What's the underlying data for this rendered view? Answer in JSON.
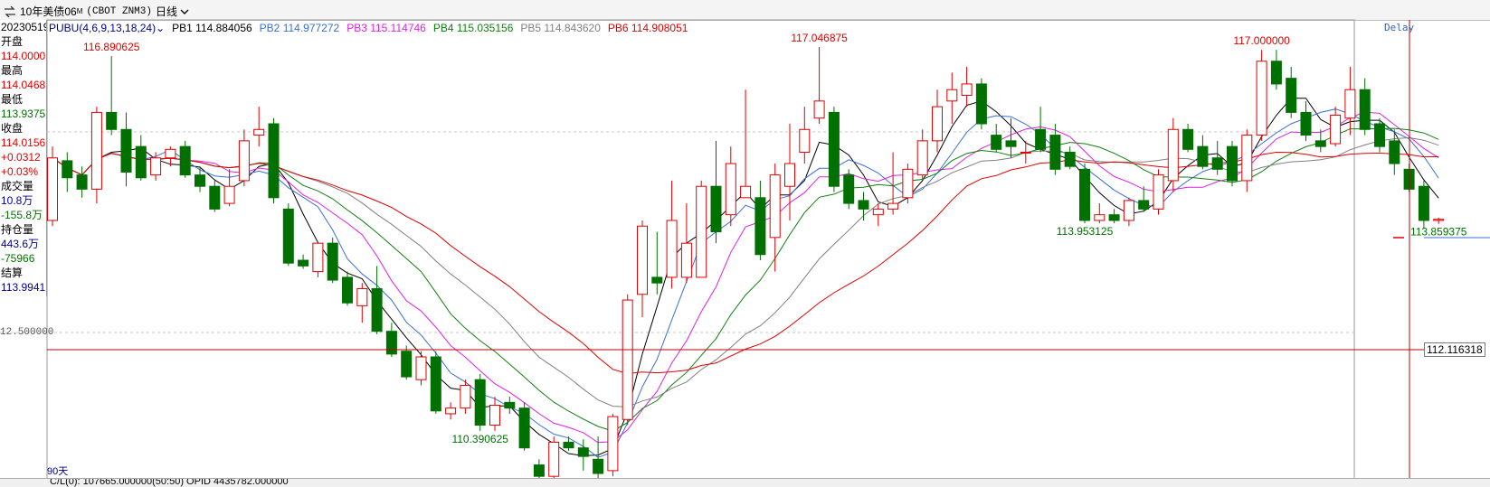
{
  "header": {
    "symbol_name": "10年美债06",
    "symbol_sup": "M",
    "symbol_code": "(CBOT ZNM3)",
    "period": "日线"
  },
  "info_panel": [
    {
      "text": "20230519",
      "cls": "lblk"
    },
    {
      "text": "开盘",
      "cls": "lblk"
    },
    {
      "text": "114.0000",
      "cls": "lred"
    },
    {
      "text": "最高",
      "cls": "lblk"
    },
    {
      "text": "114.0468",
      "cls": "lred"
    },
    {
      "text": "最低",
      "cls": "lblk"
    },
    {
      "text": "113.9375",
      "cls": "lgreen"
    },
    {
      "text": "收盘",
      "cls": "lblk"
    },
    {
      "text": "114.0156",
      "cls": "lred"
    },
    {
      "text": "+0.0312",
      "cls": "lred"
    },
    {
      "text": "+0.03%",
      "cls": "lred"
    },
    {
      "text": "成交量",
      "cls": "lblk"
    },
    {
      "text": "10.8万",
      "cls": "lblue"
    },
    {
      "text": "-155.8万",
      "cls": "lgreen"
    },
    {
      "text": "持仓量",
      "cls": "lblk"
    },
    {
      "text": "443.6万",
      "cls": "lblue"
    },
    {
      "text": "-75966",
      "cls": "lgreen"
    },
    {
      "text": "结算",
      "cls": "lblk"
    },
    {
      "text": "113.9941",
      "cls": "lblue"
    }
  ],
  "indicator": {
    "name": "PUBU(4,6,9,13,18,24)",
    "values": [
      {
        "label": "PB1 114.884056",
        "color": "#000000"
      },
      {
        "label": "PB2 114.977272",
        "color": "#3a6fd8"
      },
      {
        "label": "PB3 115.114746",
        "color": "#e020e0"
      },
      {
        "label": "PB4 115.035156",
        "color": "#108010"
      },
      {
        "label": "PB5 114.843620",
        "color": "#808080"
      },
      {
        "label": "PB6 114.908051",
        "color": "#e00000"
      }
    ]
  },
  "delay_label": "Delay",
  "price_axis_left_label": "12.500000",
  "crosshair_label": "112.116318",
  "days_label": "90天",
  "bottom_text": "C/L(0): 107665.000000(50:50)  OPID 4435782.000000",
  "colors": {
    "up": "#e00000",
    "down": "#007000",
    "ma6": "#e00000",
    "ma5": "#808080",
    "ma4": "#108010",
    "ma3": "#e020e0",
    "ma2": "#3a6fd8",
    "ma1": "#000000"
  },
  "chart_data": {
    "type": "candlestick",
    "title": "10年美债06 (CBOT ZNM3) 日线",
    "ylim": [
      109.9,
      117.4
    ],
    "annotations": [
      {
        "value": "116.890625",
        "color": "#e00000"
      },
      {
        "value": "117.046875",
        "color": "#e00000"
      },
      {
        "value": "117.000000",
        "color": "#e00000"
      },
      {
        "value": "110.390625",
        "color": "#007000"
      },
      {
        "value": "113.953125",
        "color": "#007000"
      },
      {
        "value": "113.859375",
        "color": "#007000"
      }
    ],
    "candles": [
      {
        "o": 114.0,
        "h": 115.3,
        "l": 113.9,
        "c": 115.1
      },
      {
        "o": 115.05,
        "h": 115.2,
        "l": 114.5,
        "c": 114.75
      },
      {
        "o": 114.8,
        "h": 114.95,
        "l": 114.4,
        "c": 114.55
      },
      {
        "o": 114.55,
        "h": 116.0,
        "l": 114.3,
        "c": 115.9
      },
      {
        "o": 115.9,
        "h": 116.89,
        "l": 115.5,
        "c": 115.6
      },
      {
        "o": 115.6,
        "h": 115.9,
        "l": 114.6,
        "c": 114.85
      },
      {
        "o": 115.3,
        "h": 115.5,
        "l": 114.7,
        "c": 114.75
      },
      {
        "o": 114.8,
        "h": 115.2,
        "l": 114.7,
        "c": 115.1
      },
      {
        "o": 115.1,
        "h": 115.3,
        "l": 114.95,
        "c": 115.25
      },
      {
        "o": 115.3,
        "h": 115.4,
        "l": 114.75,
        "c": 114.8
      },
      {
        "o": 114.8,
        "h": 114.95,
        "l": 114.5,
        "c": 114.6
      },
      {
        "o": 114.6,
        "h": 114.7,
        "l": 114.15,
        "c": 114.2
      },
      {
        "o": 114.3,
        "h": 114.9,
        "l": 114.25,
        "c": 114.6
      },
      {
        "o": 114.7,
        "h": 115.6,
        "l": 114.6,
        "c": 115.4
      },
      {
        "o": 115.5,
        "h": 116.0,
        "l": 115.3,
        "c": 115.6
      },
      {
        "o": 115.7,
        "h": 115.8,
        "l": 114.3,
        "c": 114.4
      },
      {
        "o": 114.2,
        "h": 114.3,
        "l": 113.2,
        "c": 113.25
      },
      {
        "o": 113.3,
        "h": 113.4,
        "l": 113.15,
        "c": 113.2
      },
      {
        "o": 113.1,
        "h": 113.6,
        "l": 113.0,
        "c": 113.6
      },
      {
        "o": 113.6,
        "h": 113.7,
        "l": 112.9,
        "c": 112.95
      },
      {
        "o": 113.0,
        "h": 113.1,
        "l": 112.5,
        "c": 112.55
      },
      {
        "o": 112.5,
        "h": 112.9,
        "l": 112.2,
        "c": 112.8
      },
      {
        "o": 112.8,
        "h": 113.2,
        "l": 112.0,
        "c": 112.05
      },
      {
        "o": 112.05,
        "h": 112.2,
        "l": 111.6,
        "c": 111.65
      },
      {
        "o": 111.7,
        "h": 111.8,
        "l": 111.2,
        "c": 111.25
      },
      {
        "o": 111.2,
        "h": 111.7,
        "l": 111.1,
        "c": 111.6
      },
      {
        "o": 111.6,
        "h": 111.7,
        "l": 110.6,
        "c": 110.65
      },
      {
        "o": 110.6,
        "h": 110.8,
        "l": 110.5,
        "c": 110.7
      },
      {
        "o": 110.7,
        "h": 111.2,
        "l": 110.6,
        "c": 111.1
      },
      {
        "o": 111.2,
        "h": 111.3,
        "l": 110.3,
        "c": 110.4
      },
      {
        "o": 110.4,
        "h": 110.9,
        "l": 110.3,
        "c": 110.75
      },
      {
        "o": 110.8,
        "h": 110.9,
        "l": 110.6,
        "c": 110.7
      },
      {
        "o": 110.7,
        "h": 110.8,
        "l": 109.95,
        "c": 110.0
      },
      {
        "o": 109.7,
        "h": 109.8,
        "l": 109.45,
        "c": 109.5
      },
      {
        "o": 109.5,
        "h": 110.2,
        "l": 109.4,
        "c": 110.1
      },
      {
        "o": 110.1,
        "h": 110.2,
        "l": 109.95,
        "c": 110.0
      },
      {
        "o": 110.0,
        "h": 110.15,
        "l": 109.6,
        "c": 109.85
      },
      {
        "o": 109.8,
        "h": 110.2,
        "l": 109.45,
        "c": 109.55
      },
      {
        "o": 109.6,
        "h": 110.6,
        "l": 109.5,
        "c": 110.55
      },
      {
        "o": 110.5,
        "h": 112.7,
        "l": 110.4,
        "c": 112.6
      },
      {
        "o": 112.7,
        "h": 114.0,
        "l": 112.3,
        "c": 113.9
      },
      {
        "o": 113.0,
        "h": 113.8,
        "l": 112.7,
        "c": 112.9
      },
      {
        "o": 113.0,
        "h": 114.7,
        "l": 112.8,
        "c": 114.0
      },
      {
        "o": 113.0,
        "h": 114.3,
        "l": 112.9,
        "c": 113.6
      },
      {
        "o": 113.0,
        "h": 114.7,
        "l": 113.0,
        "c": 114.6
      },
      {
        "o": 114.6,
        "h": 115.4,
        "l": 113.6,
        "c": 113.8
      },
      {
        "o": 114.1,
        "h": 115.3,
        "l": 113.9,
        "c": 115.0
      },
      {
        "o": 114.4,
        "h": 116.3,
        "l": 114.4,
        "c": 114.6
      },
      {
        "o": 114.4,
        "h": 114.7,
        "l": 113.3,
        "c": 113.4
      },
      {
        "o": 113.7,
        "h": 115.0,
        "l": 113.1,
        "c": 114.8
      },
      {
        "o": 114.6,
        "h": 115.7,
        "l": 114.0,
        "c": 115.0
      },
      {
        "o": 115.2,
        "h": 116.0,
        "l": 115.0,
        "c": 115.6
      },
      {
        "o": 115.8,
        "h": 117.05,
        "l": 115.7,
        "c": 116.1
      },
      {
        "o": 115.9,
        "h": 116.0,
        "l": 114.5,
        "c": 114.6
      },
      {
        "o": 114.8,
        "h": 114.9,
        "l": 114.2,
        "c": 114.3
      },
      {
        "o": 114.35,
        "h": 114.5,
        "l": 114.0,
        "c": 114.2
      },
      {
        "o": 114.1,
        "h": 114.3,
        "l": 113.9,
        "c": 114.2
      },
      {
        "o": 114.2,
        "h": 115.2,
        "l": 114.1,
        "c": 114.3
      },
      {
        "o": 114.4,
        "h": 115.0,
        "l": 114.3,
        "c": 114.9
      },
      {
        "o": 114.8,
        "h": 115.6,
        "l": 114.7,
        "c": 115.4
      },
      {
        "o": 115.4,
        "h": 116.3,
        "l": 115.2,
        "c": 116.0
      },
      {
        "o": 116.1,
        "h": 116.6,
        "l": 115.7,
        "c": 116.3
      },
      {
        "o": 116.2,
        "h": 116.7,
        "l": 116.0,
        "c": 116.4
      },
      {
        "o": 116.4,
        "h": 116.5,
        "l": 115.6,
        "c": 115.7
      },
      {
        "o": 115.5,
        "h": 115.7,
        "l": 115.2,
        "c": 115.25
      },
      {
        "o": 115.4,
        "h": 115.8,
        "l": 115.1,
        "c": 115.3
      },
      {
        "o": 115.2,
        "h": 115.4,
        "l": 115.0,
        "c": 115.2
      },
      {
        "o": 115.6,
        "h": 116.0,
        "l": 115.2,
        "c": 115.25
      },
      {
        "o": 115.5,
        "h": 115.7,
        "l": 114.8,
        "c": 114.9
      },
      {
        "o": 115.2,
        "h": 115.3,
        "l": 114.9,
        "c": 114.95
      },
      {
        "o": 114.9,
        "h": 115.0,
        "l": 113.95,
        "c": 114.0
      },
      {
        "o": 114.0,
        "h": 114.3,
        "l": 113.95,
        "c": 114.1
      },
      {
        "o": 114.1,
        "h": 114.2,
        "l": 113.95,
        "c": 114.0
      },
      {
        "o": 114.0,
        "h": 114.4,
        "l": 113.9,
        "c": 114.35
      },
      {
        "o": 114.35,
        "h": 114.6,
        "l": 114.15,
        "c": 114.2
      },
      {
        "o": 114.2,
        "h": 114.9,
        "l": 114.1,
        "c": 114.8
      },
      {
        "o": 114.7,
        "h": 115.8,
        "l": 114.5,
        "c": 115.6
      },
      {
        "o": 115.6,
        "h": 115.7,
        "l": 115.2,
        "c": 115.25
      },
      {
        "o": 115.3,
        "h": 115.5,
        "l": 114.9,
        "c": 114.95
      },
      {
        "o": 115.1,
        "h": 115.4,
        "l": 114.8,
        "c": 114.9
      },
      {
        "o": 115.3,
        "h": 115.4,
        "l": 114.6,
        "c": 114.7
      },
      {
        "o": 114.7,
        "h": 115.6,
        "l": 114.5,
        "c": 115.5
      },
      {
        "o": 115.5,
        "h": 117.0,
        "l": 115.4,
        "c": 116.8
      },
      {
        "o": 116.8,
        "h": 117.0,
        "l": 116.3,
        "c": 116.4
      },
      {
        "o": 116.5,
        "h": 116.7,
        "l": 115.8,
        "c": 115.9
      },
      {
        "o": 115.9,
        "h": 116.1,
        "l": 115.4,
        "c": 115.5
      },
      {
        "o": 115.4,
        "h": 115.6,
        "l": 115.2,
        "c": 115.3
      },
      {
        "o": 115.35,
        "h": 116.0,
        "l": 115.3,
        "c": 115.85
      },
      {
        "o": 115.8,
        "h": 116.7,
        "l": 115.5,
        "c": 116.3
      },
      {
        "o": 116.3,
        "h": 116.5,
        "l": 115.5,
        "c": 115.6
      },
      {
        "o": 115.7,
        "h": 115.8,
        "l": 115.2,
        "c": 115.3
      },
      {
        "o": 115.4,
        "h": 115.6,
        "l": 114.8,
        "c": 115.0
      },
      {
        "o": 114.9,
        "h": 115.0,
        "l": 114.5,
        "c": 114.55
      },
      {
        "o": 114.6,
        "h": 114.7,
        "l": 113.86,
        "c": 114.0
      },
      {
        "o": 114.0,
        "h": 114.05,
        "l": 113.94,
        "c": 114.02
      }
    ]
  }
}
